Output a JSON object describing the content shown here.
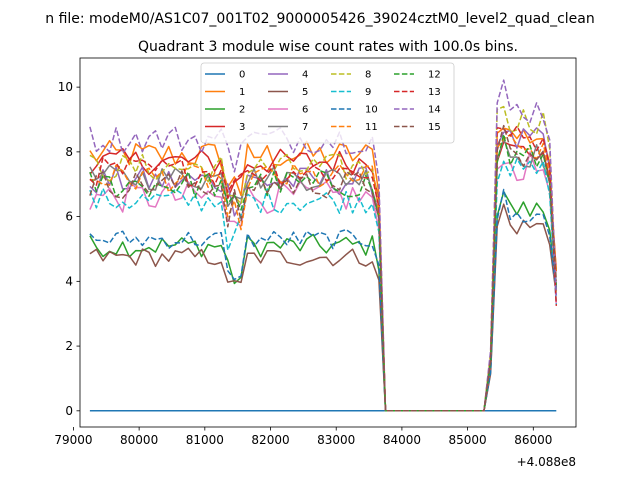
{
  "chart_data": {
    "type": "line",
    "suptitle": "n file: modeM0/AS1C07_001T02_9000005426_39024cztM0_level2_quad_clean",
    "title": "Quadrant 3 module wise count rates with 100.0s bins.",
    "xlabel": "",
    "ylabel": "",
    "x_offset_label": "+4.088e8",
    "xlim": [
      79100,
      86650
    ],
    "ylim": [
      -0.5,
      10.9
    ],
    "xticks": [
      79000,
      80000,
      81000,
      82000,
      83000,
      84000,
      85000,
      86000
    ],
    "xtick_labels": [
      "79000",
      "80000",
      "81000",
      "82000",
      "83000",
      "84000",
      "85000",
      "86000"
    ],
    "yticks": [
      0,
      2,
      4,
      6,
      8,
      10
    ],
    "ytick_labels": [
      "0",
      "2",
      "4",
      "6",
      "8",
      "10"
    ],
    "x_segments": [
      {
        "start": 79250,
        "end": 83650,
        "step": 100
      },
      {
        "start": 85350,
        "end": 86350,
        "step": 100
      }
    ],
    "gap_points": [
      [
        83750,
        0
      ],
      [
        85250,
        0
      ]
    ],
    "legend": {
      "placement": "top-center",
      "columns": 4
    },
    "series": [
      {
        "name": "0",
        "color": "#1f77b4",
        "dash": "solid",
        "level_a": 0,
        "level_b": 0,
        "amp": 0
      },
      {
        "name": "1",
        "color": "#ff7f0e",
        "dash": "solid",
        "level_a": 7.9,
        "level_b": 8.5,
        "amp": 0.45
      },
      {
        "name": "2",
        "color": "#2ca02c",
        "dash": "solid",
        "level_a": 5.1,
        "level_b": 6.2,
        "amp": 0.35
      },
      {
        "name": "3",
        "color": "#d62728",
        "dash": "solid",
        "level_a": 7.7,
        "level_b": 8.0,
        "amp": 0.4
      },
      {
        "name": "4",
        "color": "#9467bd",
        "dash": "solid",
        "level_a": 7.1,
        "level_b": 8.3,
        "amp": 0.45
      },
      {
        "name": "5",
        "color": "#8c564b",
        "dash": "solid",
        "level_a": 4.75,
        "level_b": 5.7,
        "amp": 0.3
      },
      {
        "name": "6",
        "color": "#e377c2",
        "dash": "solid",
        "level_a": 6.6,
        "level_b": 7.5,
        "amp": 0.5
      },
      {
        "name": "7",
        "color": "#7f7f7f",
        "dash": "solid",
        "level_a": 7.2,
        "level_b": 7.9,
        "amp": 0.4
      },
      {
        "name": "8",
        "color": "#bcbd22",
        "dash": "dashed",
        "level_a": 7.5,
        "level_b": 9.0,
        "amp": 0.45
      },
      {
        "name": "9",
        "color": "#17becf",
        "dash": "dashed",
        "level_a": 6.5,
        "level_b": 7.4,
        "amp": 0.4
      },
      {
        "name": "10",
        "color": "#1f77b4",
        "dash": "dashed",
        "level_a": 5.3,
        "level_b": 6.0,
        "amp": 0.3
      },
      {
        "name": "11",
        "color": "#ff7f0e",
        "dash": "dashed",
        "level_a": 7.2,
        "level_b": 8.1,
        "amp": 0.45
      },
      {
        "name": "12",
        "color": "#2ca02c",
        "dash": "dashed",
        "level_a": 7.0,
        "level_b": 7.8,
        "amp": 0.45
      },
      {
        "name": "13",
        "color": "#d62728",
        "dash": "dashed",
        "level_a": 7.4,
        "level_b": 8.4,
        "amp": 0.45
      },
      {
        "name": "14",
        "color": "#9467bd",
        "dash": "dashed",
        "level_a": 8.4,
        "level_b": 9.3,
        "amp": 0.45
      },
      {
        "name": "15",
        "color": "#8c564b",
        "dash": "dashed",
        "level_a": 7.0,
        "level_b": 7.8,
        "amp": 0.45
      }
    ]
  }
}
